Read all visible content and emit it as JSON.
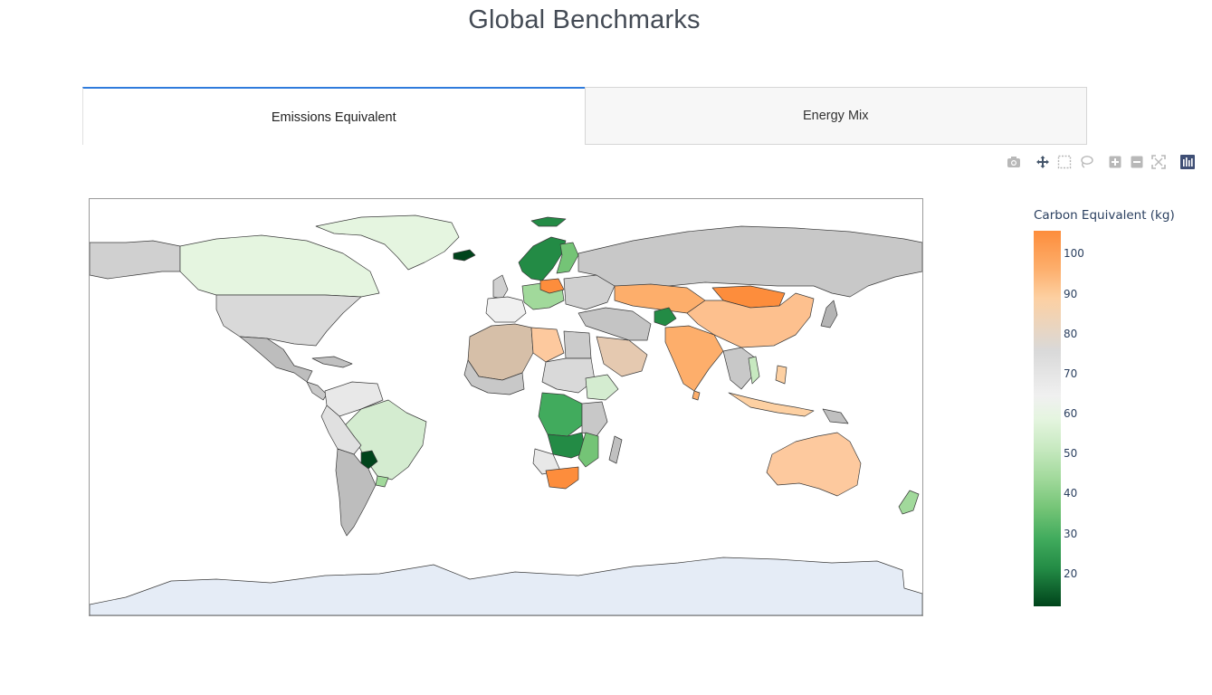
{
  "page": {
    "title": "Global Benchmarks"
  },
  "tabs": [
    {
      "label": "Emissions Equivalent",
      "active": true
    },
    {
      "label": "Energy Mix",
      "active": false
    }
  ],
  "modebar": {
    "icons": [
      "camera-icon",
      "pan-icon",
      "box-select-icon",
      "lasso-icon",
      "zoom-in-icon",
      "zoom-out-icon",
      "reset-view-icon",
      "plotly-logo-icon"
    ]
  },
  "chart_data": {
    "type": "choropleth",
    "colorbar": {
      "title": "Carbon Equivalent (kg)",
      "ticks": [
        "100",
        "90",
        "80",
        "70",
        "60",
        "50",
        "40",
        "30",
        "20"
      ],
      "range": [
        12,
        106
      ],
      "colorscale": [
        "#00441b",
        "#238b45",
        "#74c476",
        "#c7e9c0",
        "#f0f0f0",
        "#d9d9d9",
        "#fdd0a2",
        "#fd8d3c"
      ]
    },
    "land_default_color": "#d0d0d0",
    "antarctica_color": "#e5ecf6",
    "ocean_color": "#ffffff"
  },
  "colors": {
    "tab_active_border": "#2f7bdc",
    "text": "#2a3f5f"
  }
}
